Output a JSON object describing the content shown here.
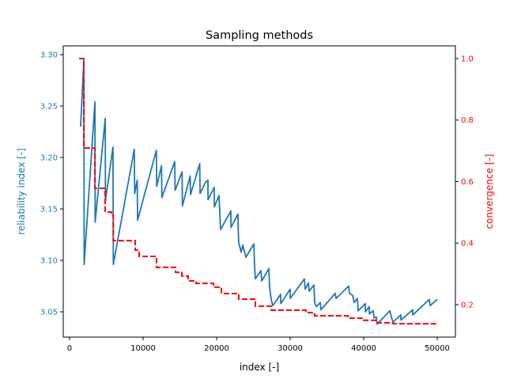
{
  "chart_data": {
    "type": "line",
    "title": "Sampling methods",
    "xlabel": "index [-]",
    "ylabel_left": "reliability index [-]",
    "ylabel_right": "convergence [-]",
    "xlim": [
      -860,
      52470
    ],
    "ylim_left": [
      3.0254,
      3.3085
    ],
    "ylim_right": [
      0.0945,
      1.041
    ],
    "xticks": [
      0,
      10000,
      20000,
      30000,
      40000,
      50000
    ],
    "xtick_labels": [
      "0",
      "10000",
      "20000",
      "30000",
      "40000",
      "50000"
    ],
    "yticks_left": [
      3.05,
      3.1,
      3.15,
      3.2,
      3.25,
      3.3
    ],
    "ytick_labels_left": [
      "3.05",
      "3.10",
      "3.15",
      "3.20",
      "3.25",
      "3.30"
    ],
    "yticks_right": [
      0.2,
      0.4,
      0.6,
      0.8,
      1.0
    ],
    "ytick_labels_right": [
      "0.2",
      "0.4",
      "0.6",
      "0.8",
      "1.0"
    ],
    "grid": false,
    "colors": {
      "left": "#1f77b4",
      "right": "#ff0000"
    },
    "series": [
      {
        "axis": "left",
        "style": "solid",
        "color": "#1f77b4",
        "points": [
          [
            1500,
            3.23
          ],
          [
            1950,
            3.296
          ],
          [
            1980,
            3.096
          ],
          [
            3450,
            3.254
          ],
          [
            3480,
            3.137
          ],
          [
            4850,
            3.238
          ],
          [
            4880,
            3.158
          ],
          [
            5900,
            3.21
          ],
          [
            5950,
            3.096
          ],
          [
            8800,
            3.208
          ],
          [
            8850,
            3.165
          ],
          [
            9200,
            3.178
          ],
          [
            9250,
            3.139
          ],
          [
            11800,
            3.207
          ],
          [
            11850,
            3.172
          ],
          [
            12500,
            3.192
          ],
          [
            12550,
            3.161
          ],
          [
            14300,
            3.196
          ],
          [
            14350,
            3.168
          ],
          [
            15300,
            3.186
          ],
          [
            15350,
            3.153
          ],
          [
            16400,
            3.182
          ],
          [
            16450,
            3.164
          ],
          [
            17700,
            3.194
          ],
          [
            17750,
            3.165
          ],
          [
            18495,
            3.176
          ],
          [
            18817,
            3.178
          ],
          [
            18830,
            3.159
          ],
          [
            19677,
            3.171
          ],
          [
            19690,
            3.152
          ],
          [
            20323,
            3.163
          ],
          [
            20430,
            3.147
          ],
          [
            20538,
            3.13
          ],
          [
            21935,
            3.148
          ],
          [
            21950,
            3.132
          ],
          [
            22903,
            3.145
          ],
          [
            22920,
            3.132
          ],
          [
            23011,
            3.117
          ],
          [
            23333,
            3.108
          ],
          [
            23548,
            3.115
          ],
          [
            23978,
            3.103
          ],
          [
            25054,
            3.116
          ],
          [
            25161,
            3.094
          ],
          [
            25269,
            3.082
          ],
          [
            26022,
            3.09
          ],
          [
            26129,
            3.08
          ],
          [
            27097,
            3.092
          ],
          [
            27204,
            3.074
          ],
          [
            27419,
            3.062
          ],
          [
            27634,
            3.056
          ],
          [
            28710,
            3.067
          ],
          [
            28720,
            3.058
          ],
          [
            30000,
            3.072
          ],
          [
            30010,
            3.063
          ],
          [
            31935,
            3.082
          ],
          [
            32043,
            3.072
          ],
          [
            32473,
            3.078
          ],
          [
            32581,
            3.07
          ],
          [
            33226,
            3.076
          ],
          [
            33333,
            3.059
          ],
          [
            33548,
            3.055
          ],
          [
            34086,
            3.059
          ],
          [
            34194,
            3.052
          ],
          [
            36129,
            3.068
          ],
          [
            36237,
            3.063
          ],
          [
            37957,
            3.075
          ],
          [
            38065,
            3.068
          ],
          [
            38495,
            3.066
          ],
          [
            38710,
            3.059
          ],
          [
            39140,
            3.063
          ],
          [
            39247,
            3.051
          ],
          [
            40215,
            3.058
          ],
          [
            40230,
            3.05
          ],
          [
            40753,
            3.055
          ],
          [
            40765,
            3.048
          ],
          [
            41290,
            3.051
          ],
          [
            41398,
            3.044
          ],
          [
            41720,
            3.045
          ],
          [
            41828,
            3.038
          ],
          [
            43548,
            3.051
          ],
          [
            43763,
            3.045
          ],
          [
            43978,
            3.04
          ],
          [
            45054,
            3.047
          ],
          [
            45065,
            3.042
          ],
          [
            46667,
            3.052
          ],
          [
            46680,
            3.047
          ],
          [
            48925,
            3.062
          ],
          [
            49032,
            3.056
          ],
          [
            50000,
            3.062
          ]
        ]
      },
      {
        "axis": "right",
        "style": "dashed-step",
        "color": "#ff0000",
        "points": [
          [
            1290,
            1.0
          ],
          [
            1935,
            0.709
          ],
          [
            3441,
            0.578
          ],
          [
            4839,
            0.501
          ],
          [
            5700,
            0.49
          ],
          [
            5950,
            0.408
          ],
          [
            8925,
            0.377
          ],
          [
            9462,
            0.357
          ],
          [
            11828,
            0.321
          ],
          [
            14409,
            0.305
          ],
          [
            15269,
            0.293
          ],
          [
            16129,
            0.277
          ],
          [
            17204,
            0.269
          ],
          [
            19570,
            0.257
          ],
          [
            20645,
            0.236
          ],
          [
            23011,
            0.218
          ],
          [
            25269,
            0.195
          ],
          [
            27419,
            0.182
          ],
          [
            32151,
            0.174
          ],
          [
            33333,
            0.164
          ],
          [
            37849,
            0.156
          ],
          [
            40000,
            0.149
          ],
          [
            41828,
            0.141
          ],
          [
            44000,
            0.138
          ],
          [
            50000,
            0.136
          ]
        ]
      }
    ]
  }
}
